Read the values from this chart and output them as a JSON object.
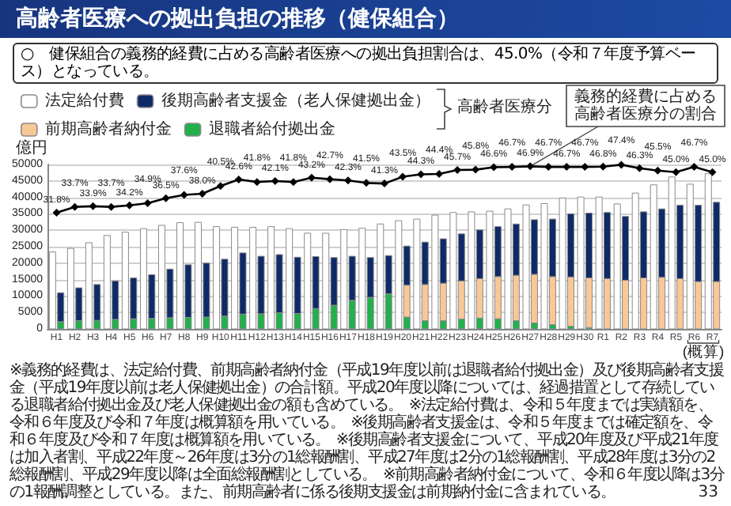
{
  "chart_data": {
    "type": "bar",
    "title": "高齢者医療への拠出負担の推移（健保組合）",
    "subtitle": "○　健保組合の義務的経費に占める高齢者医療への拠出負担割合は、45.0%（令和７年度予算ベース）となっている。",
    "ylabel": "億円",
    "categories": [
      "H1",
      "H2",
      "H3",
      "H4",
      "H5",
      "H6",
      "H7",
      "H8",
      "H9",
      "H10",
      "H11",
      "H12",
      "H13",
      "H14",
      "H15",
      "H16",
      "H17",
      "H18",
      "H19",
      "H20",
      "H21",
      "H22",
      "H23",
      "H24",
      "H25",
      "H26",
      "H27",
      "H28",
      "H29",
      "H30",
      "R1",
      "R2",
      "R3",
      "R4",
      "R5",
      "R6",
      "R7"
    ],
    "series": [
      {
        "name": "法定給付費",
        "color": "#ffffff",
        "values": [
          23400,
          24500,
          26200,
          28400,
          29400,
          30500,
          31500,
          32300,
          32400,
          31100,
          30900,
          30900,
          31100,
          30500,
          29100,
          29100,
          30200,
          30600,
          31900,
          32900,
          33400,
          34600,
          35400,
          35600,
          35800,
          36500,
          37700,
          38100,
          39800,
          40100,
          40100,
          38000,
          41300,
          43800,
          46200,
          44000,
          47200
        ]
      },
      {
        "name": "退職者給付拠出金",
        "color": "#22b04b",
        "values": [
          2200,
          2500,
          2600,
          2900,
          3100,
          3200,
          3400,
          3500,
          3600,
          3900,
          4500,
          4600,
          4900,
          4700,
          6200,
          7200,
          8700,
          9600,
          10700,
          3600,
          2500,
          2500,
          3000,
          3300,
          3100,
          2500,
          1800,
          1300,
          800,
          400,
          null,
          null,
          null,
          null,
          null,
          null,
          null
        ],
        "base": [
          0,
          0,
          0,
          0,
          0,
          0,
          0,
          0,
          0,
          0,
          0,
          0,
          0,
          0,
          0,
          0,
          0,
          0,
          0,
          0,
          0,
          0,
          0,
          0,
          0,
          0,
          0,
          0,
          0,
          0,
          null,
          null,
          null,
          null,
          null,
          null,
          null
        ]
      },
      {
        "name": "前期高齢者納付金",
        "color": "#f8c897",
        "values": [
          null,
          null,
          null,
          null,
          null,
          null,
          null,
          null,
          null,
          null,
          null,
          null,
          null,
          null,
          null,
          null,
          null,
          null,
          null,
          9700,
          11000,
          11400,
          11600,
          12000,
          12800,
          13800,
          14800,
          14600,
          15000,
          15100,
          15300,
          14800,
          15500,
          15700,
          15300,
          14400,
          14400
        ],
        "base": [
          null,
          null,
          null,
          null,
          null,
          null,
          null,
          null,
          null,
          null,
          null,
          null,
          null,
          null,
          null,
          null,
          null,
          null,
          null,
          3600,
          2500,
          2500,
          3000,
          3300,
          3100,
          2500,
          1800,
          1300,
          800,
          400,
          0,
          0,
          0,
          0,
          0,
          0,
          0
        ]
      },
      {
        "name": "後期高齢者支援金（老人保健拠出金）",
        "color": "#0f2a68",
        "values": [
          8800,
          10000,
          10900,
          11700,
          12400,
          13300,
          14800,
          16000,
          16400,
          17300,
          18600,
          17500,
          17700,
          17100,
          15800,
          14500,
          13400,
          12100,
          11600,
          11900,
          12900,
          13500,
          14300,
          14800,
          15200,
          15600,
          16600,
          17500,
          19200,
          19700,
          20100,
          19400,
          20100,
          20800,
          22300,
          23200,
          24100
        ],
        "base": [
          2200,
          2500,
          2600,
          2900,
          3100,
          3200,
          3400,
          3500,
          3600,
          3900,
          4500,
          4600,
          4900,
          4700,
          6200,
          7200,
          8700,
          9600,
          10700,
          13300,
          13500,
          13900,
          14600,
          15300,
          15900,
          16300,
          16600,
          15900,
          15800,
          15500,
          15300,
          14800,
          15500,
          15700,
          15300,
          14400,
          14400
        ]
      },
      {
        "name": "義務的経費に占める高齢者医療分の割合",
        "type": "line",
        "axis": "y2",
        "color": "#000000",
        "values": [
          31.8,
          33.7,
          33.9,
          33.7,
          34.2,
          34.9,
          36.5,
          37.6,
          38.0,
          40.5,
          42.6,
          41.8,
          42.1,
          41.8,
          43.2,
          42.7,
          42.3,
          41.5,
          41.3,
          43.5,
          44.3,
          44.4,
          45.7,
          45.8,
          46.6,
          46.7,
          46.9,
          46.7,
          46.7,
          46.7,
          46.8,
          47.4,
          46.3,
          45.5,
          45.0,
          46.7,
          45.0
        ],
        "value_labels": [
          "31.8%",
          "33.7%",
          "33.9%",
          "33.7%",
          "34.2%",
          "34.9%",
          "36.5%",
          "37.6%",
          "38.0%",
          "40.5%",
          "42.6%",
          "41.8%",
          "42.1%",
          "41.8%",
          "43.2%",
          "42.7%",
          "42.3%",
          "41.5%",
          "41.3%",
          "43.5%",
          "44.3%",
          "44.4%",
          "45.7%",
          "45.8%",
          "46.6%",
          "46.7%",
          "46.9%",
          "46.7%",
          "46.7%",
          "46.7%",
          "46.8%",
          "47.4%",
          "46.3%",
          "45.5%",
          "45.0%",
          "46.7%",
          "45.0%"
        ]
      }
    ],
    "ylim": [
      0,
      50000
    ],
    "yticks": [
      0,
      5000,
      10000,
      15000,
      20000,
      25000,
      30000,
      35000,
      40000,
      45000,
      50000
    ],
    "y2lim": [
      -6,
      47.5
    ],
    "grid": "y",
    "legend": "top left",
    "marker": "diamond",
    "annotations": [
      "高齢者医療分",
      "(概算)",
      "※義務的経費は、法定給付費、前期高齢者納付金（平成19年度以前は退職者給付拠出金）及び後期高齢者支援金（平成19年度以前は老人保健拠出金）の合計額。平成20年度以降については、経過措置として存続している退職者給付拠出金及び老人保健拠出金の額も含めている。",
      "※法定給付費は、令和５年度までは実績額を、令和６年度及び令和７年度は概算額を用いている。",
      "※後期高齢者支援金は、令和５年度までは確定額を、令和６年度及び令和７年度は概算額を用いている。",
      "※後期高齢者支援金について、平成20年度及び平成21年度は加入者割、平成22年度～26年度は3分の1総報酬割、平成27年度は2分の1総報酬割、平成28年度は3分の2総報酬割、平成29年度以降は全面総報酬割としている。",
      "※前期高齢者納付金について、令和６年度以降は3分の1報酬調整としている。また、前期高齢者に係る後期支援金は前期納付金に含まれている。",
      "33"
    ]
  }
}
